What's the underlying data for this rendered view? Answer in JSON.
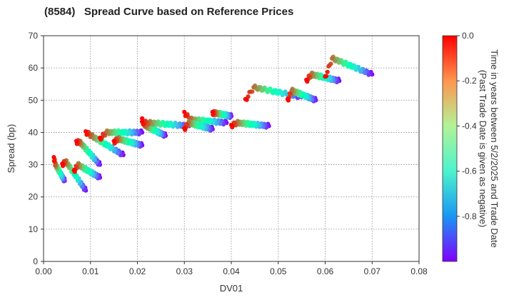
{
  "chart_data": {
    "type": "scatter",
    "title": "(8584)   Spread Curve based on Reference Prices",
    "xlabel": "DV01",
    "ylabel": "Spread (bp)",
    "xlim": [
      0,
      0.08
    ],
    "ylim": [
      0,
      70
    ],
    "xticks": [
      "0.00",
      "0.01",
      "0.02",
      "0.03",
      "0.04",
      "0.05",
      "0.06",
      "0.07",
      "0.08"
    ],
    "yticks": [
      "0",
      "10",
      "20",
      "30",
      "40",
      "50",
      "60",
      "70"
    ],
    "grid": true,
    "colorbar": {
      "label_line1": "Time in years between 5/2/2025 and Trade Date",
      "label_line2": "(Past Trade Date is given as negative)",
      "range": [
        -1.0,
        0.0
      ],
      "ticks": [
        "0.0",
        "-0.2",
        "-0.4",
        "-0.6",
        "-0.8"
      ],
      "colormap": "rainbow"
    },
    "clusters": [
      {
        "x": [
          0.0022,
          0.0045
        ],
        "y_start": 25,
        "y_end": 30,
        "y_recent": 32
      },
      {
        "x": [
          0.004,
          0.009
        ],
        "y_start": 22,
        "y_end": 31,
        "y_recent": 30
      },
      {
        "x": [
          0.007,
          0.012
        ],
        "y_start": 30,
        "y_end": 37,
        "y_recent": 37
      },
      {
        "x": [
          0.0065,
          0.012
        ],
        "y_start": 26,
        "y_end": 30,
        "y_recent": 28
      },
      {
        "x": [
          0.009,
          0.017
        ],
        "y_start": 33,
        "y_end": 39,
        "y_recent": 40
      },
      {
        "x": [
          0.012,
          0.021
        ],
        "y_start": 40,
        "y_end": 40,
        "y_recent": 38
      },
      {
        "x": [
          0.015,
          0.021
        ],
        "y_start": 36,
        "y_end": 38,
        "y_recent": 37
      },
      {
        "x": [
          0.021,
          0.026
        ],
        "y_start": 39,
        "y_end": 42,
        "y_recent": 44
      },
      {
        "x": [
          0.021,
          0.031
        ],
        "y_start": 42,
        "y_end": 43,
        "y_recent": 43
      },
      {
        "x": [
          0.03,
          0.039
        ],
        "y_start": 43,
        "y_end": 44,
        "y_recent": 46
      },
      {
        "x": [
          0.03,
          0.036
        ],
        "y_start": 41,
        "y_end": 43,
        "y_recent": 41
      },
      {
        "x": [
          0.036,
          0.04
        ],
        "y_start": 45,
        "y_end": 46,
        "y_recent": 46
      },
      {
        "x": [
          0.04,
          0.048
        ],
        "y_start": 42,
        "y_end": 43,
        "y_recent": 42
      },
      {
        "x": [
          0.043,
          0.055
        ],
        "y_start": 51,
        "y_end": 54,
        "y_recent": 50
      },
      {
        "x": [
          0.052,
          0.058
        ],
        "y_start": 50,
        "y_end": 53,
        "y_recent": 50
      },
      {
        "x": [
          0.056,
          0.063
        ],
        "y_start": 56,
        "y_end": 58,
        "y_recent": 56
      },
      {
        "x": [
          0.06,
          0.07
        ],
        "y_start": 58,
        "y_end": 63,
        "y_recent": 57
      }
    ]
  }
}
